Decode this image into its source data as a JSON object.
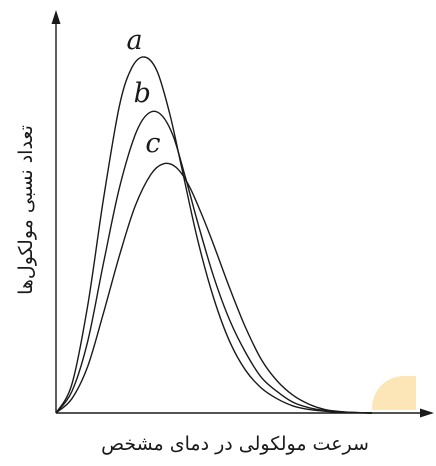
{
  "chart_data": {
    "type": "line",
    "title": "",
    "xlabel": "سرعت مولکولی در دمای مشخص",
    "ylabel": "تعداد نسبی مولکول‌ها",
    "xlim": [
      0,
      100
    ],
    "ylim": [
      0,
      100
    ],
    "grid": false,
    "legend": "none",
    "series": [
      {
        "name": "a",
        "x": [
          0,
          5,
          10,
          15,
          20,
          24,
          28,
          32,
          36,
          40,
          45,
          50,
          55,
          60,
          65,
          70,
          75,
          80,
          85,
          90,
          95,
          100
        ],
        "values": [
          0,
          8,
          30,
          60,
          86,
          97,
          100,
          96,
          84,
          68,
          48,
          32,
          20,
          12,
          7,
          4,
          2,
          1,
          0.5,
          0.2,
          0.1,
          0
        ]
      },
      {
        "name": "b",
        "x": [
          0,
          5,
          10,
          15,
          20,
          25,
          29,
          33,
          37,
          41,
          45,
          50,
          55,
          60,
          65,
          70,
          75,
          80,
          85,
          90,
          95,
          100
        ],
        "values": [
          0,
          6,
          20,
          42,
          63,
          78,
          84,
          84,
          78,
          66,
          53,
          38,
          26,
          17,
          10,
          6,
          3,
          1.5,
          0.7,
          0.3,
          0.1,
          0
        ]
      },
      {
        "name": "c",
        "x": [
          0,
          5,
          10,
          15,
          20,
          25,
          30,
          34,
          38,
          42,
          46,
          50,
          55,
          60,
          65,
          70,
          75,
          80,
          85,
          90,
          95,
          100
        ],
        "values": [
          0,
          4,
          13,
          28,
          44,
          58,
          67,
          70,
          69,
          64,
          56,
          47,
          35,
          24,
          15,
          9,
          5,
          2.5,
          1,
          0.4,
          0.1,
          0
        ]
      }
    ]
  },
  "colors": {
    "ink": "#1a1a1a",
    "watermark": "#f7b733"
  }
}
